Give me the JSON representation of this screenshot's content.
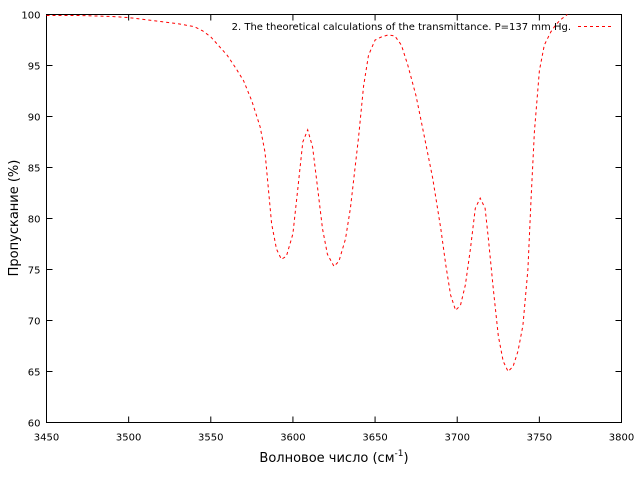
{
  "chart_data": {
    "type": "line",
    "title": "",
    "xlabel": "Волновое число (см",
    "xlabel_sup": "-1",
    "xlabel_suffix": ")",
    "ylabel": "Пропускание (%)",
    "xlim": [
      3450,
      3800
    ],
    "ylim": [
      60,
      100
    ],
    "xticks": [
      3450,
      3500,
      3550,
      3600,
      3650,
      3700,
      3750,
      3800
    ],
    "yticks": [
      60,
      65,
      70,
      75,
      80,
      85,
      90,
      95,
      100
    ],
    "grid": false,
    "legend_position": "top-right",
    "series": [
      {
        "name": "2. The theoretical calculations of the transmittance. P=137 mm Hg.",
        "color": "#ff0000",
        "style": "dashed",
        "x": [
          3450,
          3470,
          3490,
          3500,
          3510,
          3520,
          3530,
          3540,
          3545,
          3550,
          3555,
          3560,
          3565,
          3570,
          3575,
          3580,
          3583,
          3585,
          3587,
          3590,
          3593,
          3596,
          3600,
          3603,
          3606,
          3609,
          3612,
          3615,
          3618,
          3621,
          3625,
          3628,
          3632,
          3635,
          3640,
          3643,
          3646,
          3650,
          3654,
          3658,
          3662,
          3666,
          3670,
          3675,
          3680,
          3685,
          3690,
          3693,
          3696,
          3699,
          3702,
          3705,
          3708,
          3711,
          3714,
          3717,
          3719,
          3722,
          3725,
          3728,
          3731,
          3734,
          3737,
          3740,
          3743,
          3745,
          3747,
          3750,
          3753,
          3757,
          3760,
          3763,
          3767
        ],
        "y": [
          99.9,
          99.9,
          99.8,
          99.7,
          99.5,
          99.3,
          99.1,
          98.8,
          98.4,
          97.8,
          96.9,
          96.0,
          94.8,
          93.5,
          91.5,
          89.0,
          86.5,
          83.0,
          79.5,
          77.0,
          76.0,
          76.3,
          78.5,
          83.0,
          87.5,
          88.7,
          87.0,
          83.0,
          79.0,
          76.5,
          75.3,
          75.8,
          78.0,
          81.0,
          88.0,
          93.0,
          96.0,
          97.5,
          97.8,
          98.0,
          97.9,
          97.0,
          95.0,
          92.0,
          88.0,
          84.0,
          79.0,
          75.5,
          72.5,
          71.0,
          71.5,
          73.5,
          77.0,
          81.0,
          82.0,
          81.0,
          78.0,
          73.0,
          68.5,
          66.0,
          65.0,
          65.5,
          67.0,
          69.5,
          75.0,
          82.0,
          88.5,
          94.5,
          97.0,
          98.3,
          99.0,
          99.5,
          100.0
        ]
      }
    ]
  }
}
